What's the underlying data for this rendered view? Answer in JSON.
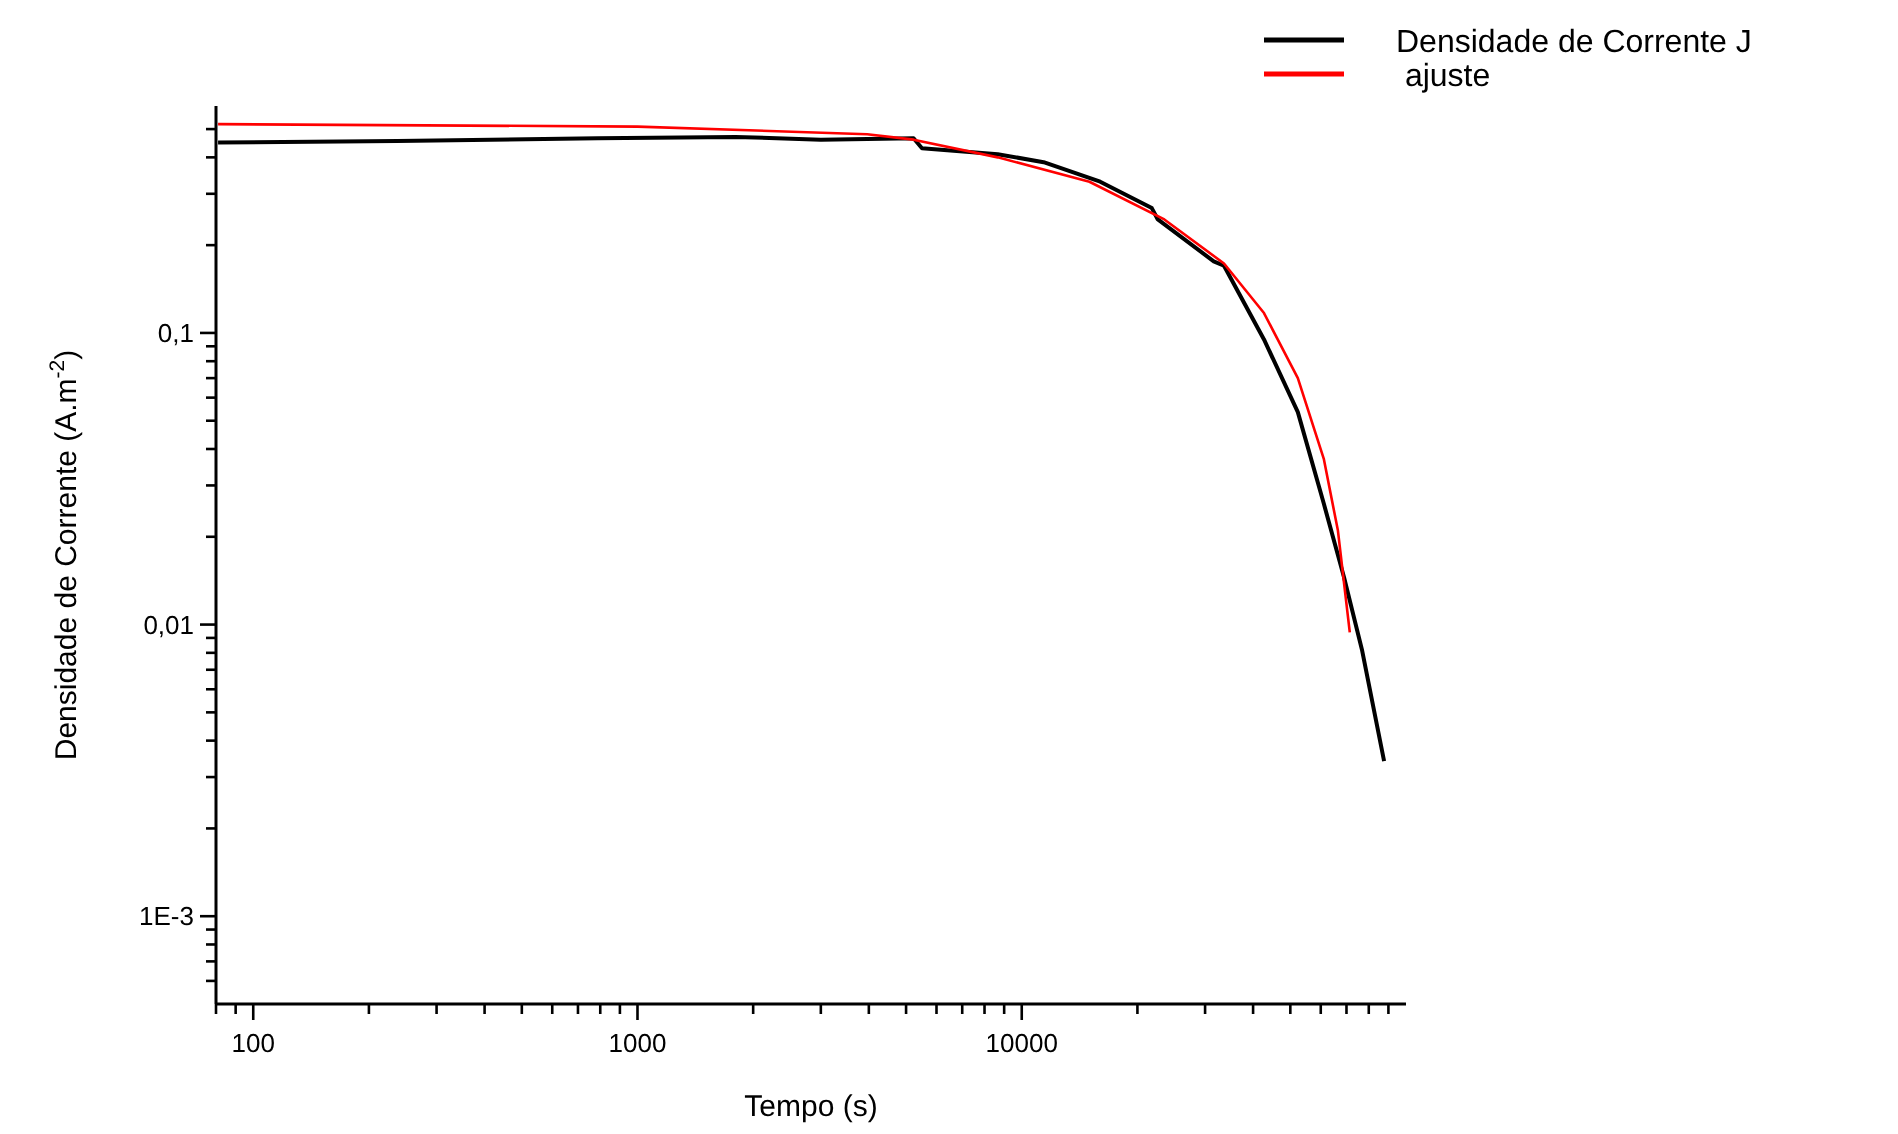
{
  "chart_data": {
    "type": "line",
    "xlabel": "Tempo (s)",
    "ylabel": "Densidade de Corrente (A.m$^{-2}$)",
    "log": "xy",
    "grid": false,
    "legend": "top right",
    "line_style": "solid",
    "marker": "none",
    "xlim": [
      80,
      100000
    ],
    "xticks": [
      {
        "value": 80,
        "label": null
      },
      {
        "value": 90,
        "label": null
      },
      100,
      {
        "value": 200,
        "label": null
      },
      {
        "value": 300,
        "label": null
      },
      {
        "value": 400,
        "label": null
      },
      {
        "value": 500,
        "label": null
      },
      {
        "value": 600,
        "label": null
      },
      {
        "value": 700,
        "label": null
      },
      {
        "value": 800,
        "label": null
      },
      {
        "value": 900,
        "label": null
      },
      1000,
      {
        "value": 2000,
        "label": null
      },
      {
        "value": 3000,
        "label": null
      },
      {
        "value": 4000,
        "label": null
      },
      {
        "value": 5000,
        "label": null
      },
      {
        "value": 6000,
        "label": null
      },
      {
        "value": 7000,
        "label": null
      },
      {
        "value": 8000,
        "label": null
      },
      {
        "value": 9000,
        "label": null
      },
      10000,
      {
        "value": 20000,
        "label": null
      },
      {
        "value": 30000,
        "label": null
      },
      {
        "value": 40000,
        "label": null
      },
      {
        "value": 50000,
        "label": null
      },
      {
        "value": 60000,
        "label": null
      },
      {
        "value": 70000,
        "label": null
      },
      {
        "value": 80000,
        "label": null
      },
      {
        "value": 90000,
        "label": null
      }
    ],
    "ylim": [
      0.0005,
      0.6
    ],
    "yticks": [
      {
        "value": 0.0006,
        "label": null
      },
      {
        "value": 0.0007,
        "label": null
      },
      {
        "value": 0.0008,
        "label": null
      },
      {
        "value": 0.0009,
        "label": null
      },
      {
        "value": 0.001,
        "label": "1E-3"
      },
      {
        "value": 0.002,
        "label": null
      },
      {
        "value": 0.003,
        "label": null
      },
      {
        "value": 0.004,
        "label": null
      },
      {
        "value": 0.005,
        "label": null
      },
      {
        "value": 0.006,
        "label": null
      },
      {
        "value": 0.007,
        "label": null
      },
      {
        "value": 0.008,
        "label": null
      },
      {
        "value": 0.009,
        "label": null
      },
      {
        "value": 0.01,
        "label": "0,01"
      },
      {
        "value": 0.02,
        "label": null
      },
      {
        "value": 0.03,
        "label": null
      },
      {
        "value": 0.04,
        "label": null
      },
      {
        "value": 0.05,
        "label": null
      },
      {
        "value": 0.06,
        "label": null
      },
      {
        "value": 0.07,
        "label": null
      },
      {
        "value": 0.08,
        "label": null
      },
      {
        "value": 0.09,
        "label": null
      },
      {
        "value": 0.1,
        "label": "0,1"
      },
      {
        "value": 0.2,
        "label": null
      },
      {
        "value": 0.3,
        "label": null
      },
      {
        "value": 0.4,
        "label": null
      },
      {
        "value": 0.5,
        "label": null
      }
    ],
    "series": [
      {
        "name": "Densidade de Corrente J",
        "color": "#000000",
        "x": [
          81,
          237,
          787,
          1800,
          3000,
          5230,
          5500,
          8660,
          11400,
          16000,
          21800,
          22600,
          31600,
          33600,
          42700,
          52300,
          61100,
          69000,
          76800,
          87700
        ],
        "values": [
          0.45,
          0.455,
          0.465,
          0.47,
          0.46,
          0.465,
          0.43,
          0.41,
          0.385,
          0.33,
          0.268,
          0.245,
          0.176,
          0.17,
          0.095,
          0.0535,
          0.026,
          0.0145,
          0.0082,
          0.0034
        ]
      },
      {
        "name": " ajuste",
        "color": "#ff0000",
        "x": [
          81,
          1000,
          3960,
          5230,
          8660,
          15000,
          23500,
          33600,
          42700,
          52300,
          61100,
          66500,
          71400
        ],
        "values": [
          0.52,
          0.51,
          0.48,
          0.46,
          0.4,
          0.33,
          0.245,
          0.173,
          0.117,
          0.07,
          0.037,
          0.021,
          0.0094
        ]
      }
    ]
  }
}
